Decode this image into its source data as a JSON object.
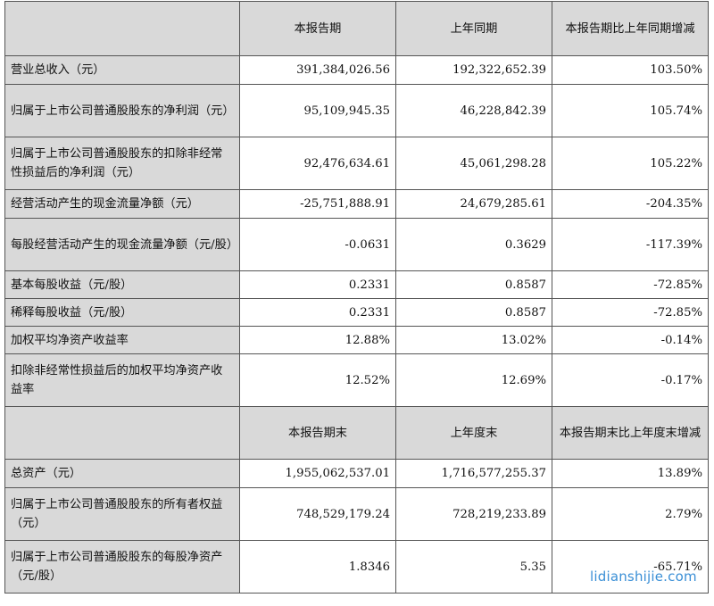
{
  "header1": {
    "col1": "本报告期",
    "col2": "上年同期",
    "col3": "本报告期比上年同期增减"
  },
  "rows1": [
    {
      "label": "营业总收入（元）",
      "v1": "391,384,026.56",
      "v2": "192,322,652.39",
      "v3": "103.50%"
    },
    {
      "label": "归属于上市公司普通股股东的净利润（元）",
      "v1": "95,109,945.35",
      "v2": "46,228,842.39",
      "v3": "105.74%"
    },
    {
      "label": "归属于上市公司普通股股东的扣除非经常性损益后的净利润（元）",
      "v1": "92,476,634.61",
      "v2": "45,061,298.28",
      "v3": "105.22%"
    },
    {
      "label": "经营活动产生的现金流量净额（元）",
      "v1": "-25,751,888.91",
      "v2": "24,679,285.61",
      "v3": "-204.35%"
    },
    {
      "label": "每股经营活动产生的现金流量净额（元/股）",
      "v1": "-0.0631",
      "v2": "0.3629",
      "v3": "-117.39%"
    },
    {
      "label": "基本每股收益（元/股）",
      "v1": "0.2331",
      "v2": "0.8587",
      "v3": "-72.85%"
    },
    {
      "label": "稀释每股收益（元/股）",
      "v1": "0.2331",
      "v2": "0.8587",
      "v3": "-72.85%"
    },
    {
      "label": "加权平均净资产收益率",
      "v1": "12.88%",
      "v2": "13.02%",
      "v3": "-0.14%"
    },
    {
      "label": "扣除非经常性损益后的加权平均净资产收益率",
      "v1": "12.52%",
      "v2": "12.69%",
      "v3": "-0.17%"
    }
  ],
  "header2": {
    "col1": "本报告期末",
    "col2": "上年度末",
    "col3": "本报告期末比上年度末增减"
  },
  "rows2": [
    {
      "label": "总资产（元）",
      "v1": "1,955,062,537.01",
      "v2": "1,716,577,255.37",
      "v3": "13.89%"
    },
    {
      "label": "归属于上市公司普通股股东的所有者权益（元）",
      "v1": "748,529,179.24",
      "v2": "728,219,233.89",
      "v3": "2.79%"
    },
    {
      "label": "归属于上市公司普通股股东的每股净资产（元/股）",
      "v1": "1.8346",
      "v2": "5.35",
      "v3": "-65.71%"
    }
  ],
  "watermark": "lidianshijie.com"
}
